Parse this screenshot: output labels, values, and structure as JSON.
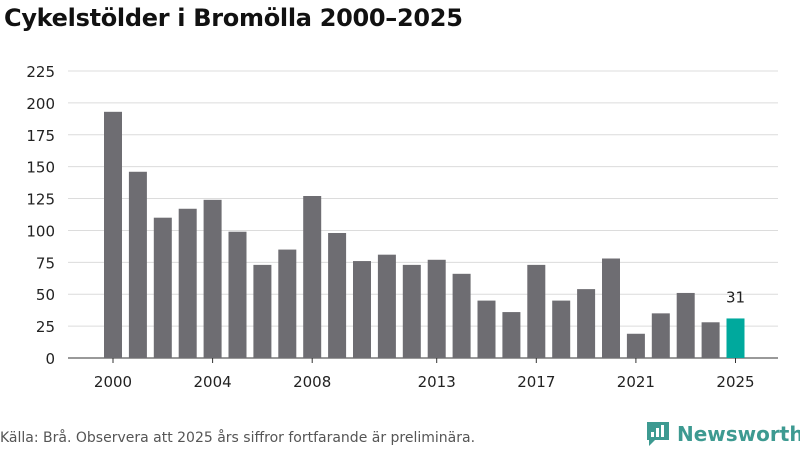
{
  "header": {
    "title": "Cykelstölder i Bromölla 2000–2025"
  },
  "footer": {
    "source": "Källa: Brå. Observera att 2025 års siffror fortfarande är preliminära.",
    "brand": "Newsworthy",
    "brand_icon": "newsworthy-logo-icon"
  },
  "colors": {
    "bar": "#6e6d72",
    "highlight": "#00a99d",
    "grid": "#dcdcdc",
    "axis": "#333333",
    "brand": "#3d9a91"
  },
  "chart_data": {
    "type": "bar",
    "title": "Cykelstölder i Bromölla 2000–2025",
    "xlabel": "",
    "ylabel": "",
    "categories": [
      "2000",
      "2001",
      "2002",
      "2003",
      "2004",
      "2005",
      "2006",
      "2007",
      "2008",
      "2009",
      "2010",
      "2011",
      "2012",
      "2013",
      "2014",
      "2015",
      "2016",
      "2017",
      "2018",
      "2019",
      "2020",
      "2021",
      "2022",
      "2023",
      "2024",
      "2025"
    ],
    "values": [
      193,
      146,
      110,
      117,
      124,
      99,
      73,
      85,
      127,
      98,
      76,
      81,
      73,
      77,
      66,
      45,
      36,
      73,
      45,
      54,
      78,
      19,
      35,
      51,
      28,
      31
    ],
    "highlight_category": "2025",
    "highlight_label": "31",
    "x_tick_labels": [
      "2000",
      "2004",
      "2008",
      "2013",
      "2017",
      "2021",
      "2025"
    ],
    "y_ticks": [
      0,
      25,
      50,
      75,
      100,
      125,
      150,
      175,
      200,
      225
    ],
    "ylim": [
      0,
      225
    ],
    "grid": true
  }
}
